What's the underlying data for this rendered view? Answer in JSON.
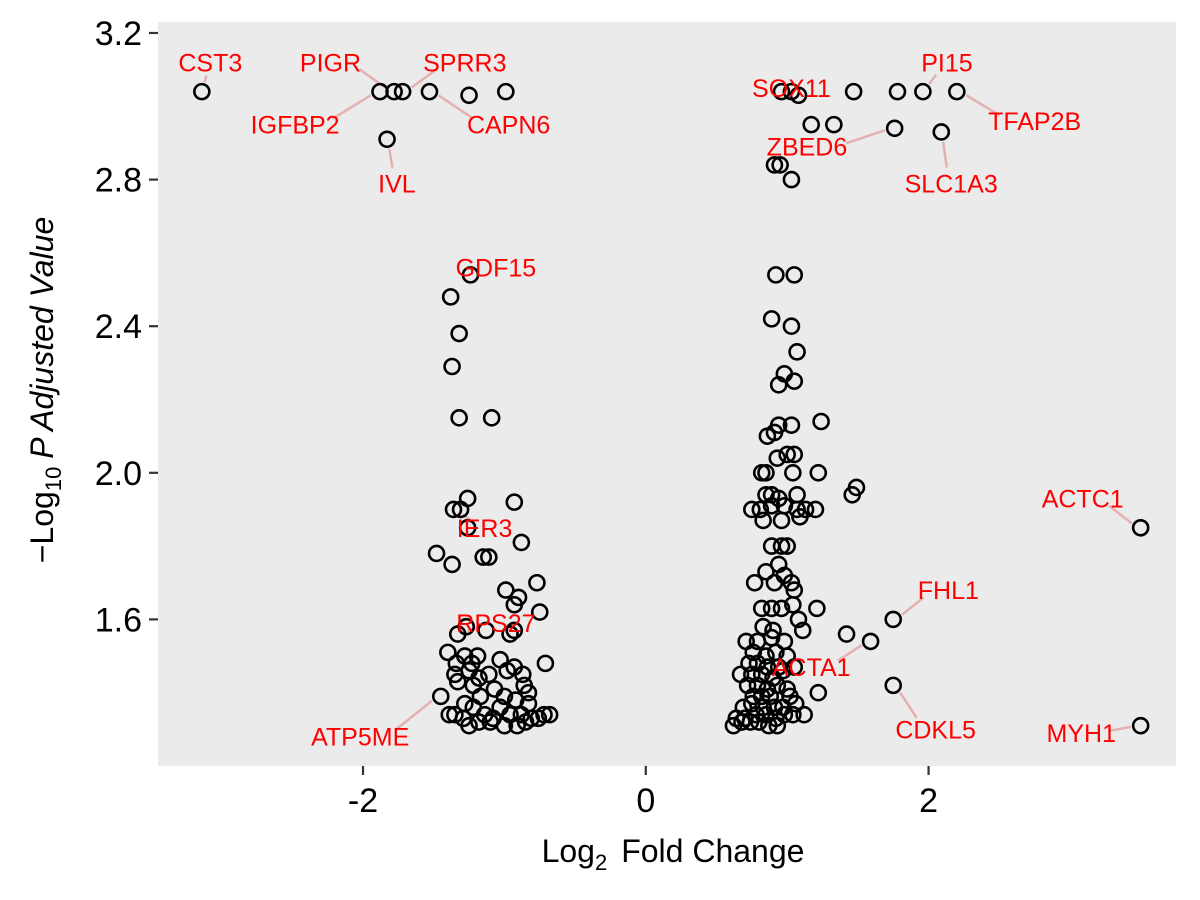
{
  "chart_data": {
    "type": "scatter",
    "title": "",
    "xlabel": {
      "main": "Log",
      "sub": "2",
      "rest": "Fold Change"
    },
    "ylabel": {
      "prefix": "−Log",
      "sub": "10",
      "p": "P",
      "rest": " Adjusted Value"
    },
    "xlim": [
      -3.45,
      3.75
    ],
    "ylim": [
      1.2,
      3.23
    ],
    "x_ticks": [
      {
        "value": -2,
        "label": "-2"
      },
      {
        "value": 0,
        "label": "0"
      },
      {
        "value": 2,
        "label": "2"
      }
    ],
    "y_ticks": [
      {
        "value": 1.6,
        "label": "1.6"
      },
      {
        "value": 2.0,
        "label": "2.0"
      },
      {
        "value": 2.4,
        "label": "2.4"
      },
      {
        "value": 2.8,
        "label": "2.8"
      },
      {
        "value": 3.2,
        "label": "3.2"
      }
    ],
    "grid": false,
    "background_color": "#EBEBEB",
    "label_color": "#FF0000",
    "leader_color": "#E08080",
    "points": [
      [
        -3.14,
        3.04
      ],
      [
        -1.88,
        3.04
      ],
      [
        -1.78,
        3.04
      ],
      [
        -1.72,
        3.04
      ],
      [
        -1.53,
        3.04
      ],
      [
        -1.25,
        3.03
      ],
      [
        -0.99,
        3.04
      ],
      [
        -1.83,
        2.91
      ],
      [
        -1.38,
        2.48
      ],
      [
        -1.24,
        2.54
      ],
      [
        -1.32,
        2.38
      ],
      [
        -1.37,
        2.29
      ],
      [
        -1.32,
        2.15
      ],
      [
        -1.09,
        2.15
      ],
      [
        -1.26,
        1.93
      ],
      [
        -0.93,
        1.92
      ],
      [
        -1.36,
        1.9
      ],
      [
        -1.31,
        1.9
      ],
      [
        -1.26,
        1.85
      ],
      [
        -0.88,
        1.81
      ],
      [
        -1.48,
        1.78
      ],
      [
        -1.37,
        1.75
      ],
      [
        -1.15,
        1.77
      ],
      [
        -1.11,
        1.77
      ],
      [
        -0.77,
        1.7
      ],
      [
        -0.99,
        1.68
      ],
      [
        -0.9,
        1.66
      ],
      [
        -0.93,
        1.64
      ],
      [
        -0.75,
        1.62
      ],
      [
        -1.33,
        1.56
      ],
      [
        -1.27,
        1.58
      ],
      [
        -1.13,
        1.57
      ],
      [
        -0.93,
        1.57
      ],
      [
        -0.96,
        1.56
      ],
      [
        -1.4,
        1.51
      ],
      [
        -1.28,
        1.5
      ],
      [
        -1.19,
        1.5
      ],
      [
        -1.34,
        1.48
      ],
      [
        -1.23,
        1.48
      ],
      [
        -1.03,
        1.49
      ],
      [
        -0.93,
        1.47
      ],
      [
        -0.71,
        1.48
      ],
      [
        -1.35,
        1.45
      ],
      [
        -1.25,
        1.46
      ],
      [
        -1.18,
        1.44
      ],
      [
        -1.11,
        1.45
      ],
      [
        -0.98,
        1.46
      ],
      [
        -0.87,
        1.45
      ],
      [
        -1.33,
        1.43
      ],
      [
        -1.22,
        1.42
      ],
      [
        -1.07,
        1.41
      ],
      [
        -0.86,
        1.42
      ],
      [
        -0.83,
        1.4
      ],
      [
        -1.45,
        1.39
      ],
      [
        -1.28,
        1.37
      ],
      [
        -1.17,
        1.39
      ],
      [
        -1.0,
        1.39
      ],
      [
        -0.92,
        1.38
      ],
      [
        -0.83,
        1.37
      ],
      [
        -1.35,
        1.34
      ],
      [
        -1.29,
        1.33
      ],
      [
        -1.22,
        1.36
      ],
      [
        -1.14,
        1.34
      ],
      [
        -1.08,
        1.33
      ],
      [
        -1.03,
        1.36
      ],
      [
        -0.96,
        1.34
      ],
      [
        -0.88,
        1.34
      ],
      [
        -0.81,
        1.33
      ],
      [
        -0.76,
        1.33
      ],
      [
        -0.72,
        1.34
      ],
      [
        -0.68,
        1.34
      ],
      [
        -1.39,
        1.34
      ],
      [
        -1.25,
        1.31
      ],
      [
        -1.18,
        1.32
      ],
      [
        -1.1,
        1.32
      ],
      [
        -1.0,
        1.31
      ],
      [
        -0.91,
        1.31
      ],
      [
        -0.85,
        1.32
      ],
      [
        0.96,
        3.04
      ],
      [
        1.03,
        3.04
      ],
      [
        1.08,
        3.03
      ],
      [
        1.47,
        3.04
      ],
      [
        1.78,
        3.04
      ],
      [
        1.96,
        3.04
      ],
      [
        2.2,
        3.04
      ],
      [
        1.76,
        2.94
      ],
      [
        2.09,
        2.93
      ],
      [
        1.17,
        2.95
      ],
      [
        1.33,
        2.95
      ],
      [
        0.91,
        2.84
      ],
      [
        0.95,
        2.84
      ],
      [
        1.03,
        2.8
      ],
      [
        0.92,
        2.54
      ],
      [
        1.05,
        2.54
      ],
      [
        0.89,
        2.42
      ],
      [
        1.03,
        2.4
      ],
      [
        1.07,
        2.33
      ],
      [
        0.98,
        2.27
      ],
      [
        0.94,
        2.24
      ],
      [
        1.05,
        2.25
      ],
      [
        0.86,
        2.1
      ],
      [
        0.91,
        2.11
      ],
      [
        0.94,
        2.13
      ],
      [
        1.03,
        2.13
      ],
      [
        1.24,
        2.14
      ],
      [
        0.93,
        2.04
      ],
      [
        1.0,
        2.05
      ],
      [
        1.05,
        2.05
      ],
      [
        0.82,
        2.0
      ],
      [
        0.85,
        2.0
      ],
      [
        1.04,
        2.0
      ],
      [
        1.22,
        2.0
      ],
      [
        1.49,
        1.96
      ],
      [
        1.46,
        1.94
      ],
      [
        0.85,
        1.94
      ],
      [
        0.89,
        1.94
      ],
      [
        0.94,
        1.93
      ],
      [
        1.07,
        1.94
      ],
      [
        0.75,
        1.9
      ],
      [
        0.81,
        1.9
      ],
      [
        0.89,
        1.91
      ],
      [
        0.98,
        1.91
      ],
      [
        1.07,
        1.9
      ],
      [
        1.13,
        1.9
      ],
      [
        1.2,
        1.9
      ],
      [
        0.83,
        1.87
      ],
      [
        0.96,
        1.87
      ],
      [
        1.09,
        1.88
      ],
      [
        0.89,
        1.8
      ],
      [
        0.96,
        1.8
      ],
      [
        1.0,
        1.8
      ],
      [
        0.85,
        1.73
      ],
      [
        0.94,
        1.75
      ],
      [
        0.98,
        1.72
      ],
      [
        0.77,
        1.7
      ],
      [
        0.91,
        1.7
      ],
      [
        1.03,
        1.7
      ],
      [
        1.05,
        1.68
      ],
      [
        0.82,
        1.63
      ],
      [
        0.89,
        1.63
      ],
      [
        0.96,
        1.63
      ],
      [
        1.04,
        1.64
      ],
      [
        1.21,
        1.63
      ],
      [
        0.83,
        1.58
      ],
      [
        0.9,
        1.57
      ],
      [
        1.08,
        1.6
      ],
      [
        1.11,
        1.57
      ],
      [
        1.42,
        1.56
      ],
      [
        1.59,
        1.54
      ],
      [
        1.75,
        1.6
      ],
      [
        0.71,
        1.54
      ],
      [
        0.79,
        1.54
      ],
      [
        0.89,
        1.55
      ],
      [
        0.98,
        1.54
      ],
      [
        0.76,
        1.51
      ],
      [
        0.85,
        1.5
      ],
      [
        0.92,
        1.51
      ],
      [
        1.0,
        1.5
      ],
      [
        0.73,
        1.48
      ],
      [
        0.79,
        1.48
      ],
      [
        0.86,
        1.47
      ],
      [
        0.94,
        1.47
      ],
      [
        0.67,
        1.45
      ],
      [
        0.75,
        1.45
      ],
      [
        0.82,
        1.45
      ],
      [
        0.9,
        1.44
      ],
      [
        0.97,
        1.46
      ],
      [
        1.05,
        1.47
      ],
      [
        0.72,
        1.42
      ],
      [
        0.79,
        1.42
      ],
      [
        0.86,
        1.41
      ],
      [
        0.93,
        1.42
      ],
      [
        1.0,
        1.41
      ],
      [
        0.76,
        1.39
      ],
      [
        0.82,
        1.39
      ],
      [
        0.88,
        1.39
      ],
      [
        1.02,
        1.39
      ],
      [
        1.22,
        1.4
      ],
      [
        1.75,
        1.42
      ],
      [
        0.69,
        1.36
      ],
      [
        0.75,
        1.37
      ],
      [
        0.83,
        1.36
      ],
      [
        0.91,
        1.36
      ],
      [
        0.97,
        1.36
      ],
      [
        1.06,
        1.37
      ],
      [
        0.64,
        1.33
      ],
      [
        0.7,
        1.33
      ],
      [
        0.78,
        1.34
      ],
      [
        0.85,
        1.34
      ],
      [
        0.92,
        1.33
      ],
      [
        0.98,
        1.34
      ],
      [
        1.04,
        1.34
      ],
      [
        1.12,
        1.34
      ],
      [
        0.62,
        1.31
      ],
      [
        0.68,
        1.32
      ],
      [
        0.74,
        1.32
      ],
      [
        0.8,
        1.32
      ],
      [
        0.87,
        1.31
      ],
      [
        0.93,
        1.31
      ],
      [
        3.5,
        1.85
      ],
      [
        3.5,
        1.31
      ]
    ],
    "labels": [
      {
        "text": "CST3",
        "x": -3.14,
        "y": 3.04,
        "lx": -3.08,
        "ly": 3.12
      },
      {
        "text": "PIGR",
        "x": -1.78,
        "y": 3.04,
        "lx": -2.23,
        "ly": 3.12
      },
      {
        "text": "SPRR3",
        "x": -1.72,
        "y": 3.04,
        "lx": -1.28,
        "ly": 3.12
      },
      {
        "text": "IGFBP2",
        "x": -1.88,
        "y": 3.04,
        "lx": -2.48,
        "ly": 2.95
      },
      {
        "text": "CAPN6",
        "x": -1.53,
        "y": 3.04,
        "lx": -0.97,
        "ly": 2.95
      },
      {
        "text": "IVL",
        "x": -1.83,
        "y": 2.91,
        "lx": -1.76,
        "ly": 2.79
      },
      {
        "text": "SOX11",
        "x": 1.08,
        "y": 3.03,
        "lx": 1.03,
        "ly": 3.05
      },
      {
        "text": "PI15",
        "x": 1.96,
        "y": 3.04,
        "lx": 2.13,
        "ly": 3.12
      },
      {
        "text": "TFAP2B",
        "x": 2.2,
        "y": 3.04,
        "lx": 2.75,
        "ly": 2.96
      },
      {
        "text": "ZBED6",
        "x": 1.76,
        "y": 2.94,
        "lx": 1.14,
        "ly": 2.89
      },
      {
        "text": "SLC1A3",
        "x": 2.09,
        "y": 2.93,
        "lx": 2.16,
        "ly": 2.79
      },
      {
        "text": "GDF15",
        "x": -1.24,
        "y": 2.54,
        "lx": -1.06,
        "ly": 2.56
      },
      {
        "text": "IER3",
        "x": -1.36,
        "y": 1.9,
        "lx": -1.14,
        "ly": 1.85
      },
      {
        "text": "ACTC1",
        "x": 3.5,
        "y": 1.85,
        "lx": 3.09,
        "ly": 1.93
      },
      {
        "text": "FHL1",
        "x": 1.75,
        "y": 1.6,
        "lx": 2.14,
        "ly": 1.68
      },
      {
        "text": "RPS27",
        "x": -1.33,
        "y": 1.56,
        "lx": -1.06,
        "ly": 1.59
      },
      {
        "text": "ACTA1",
        "x": 1.59,
        "y": 1.54,
        "lx": 1.17,
        "ly": 1.47
      },
      {
        "text": "CDKL5",
        "x": 1.75,
        "y": 1.42,
        "lx": 2.05,
        "ly": 1.3
      },
      {
        "text": "ATP5ME",
        "x": -1.45,
        "y": 1.39,
        "lx": -2.02,
        "ly": 1.28
      },
      {
        "text": "MYH1",
        "x": 3.5,
        "y": 1.31,
        "lx": 3.08,
        "ly": 1.29
      }
    ]
  }
}
